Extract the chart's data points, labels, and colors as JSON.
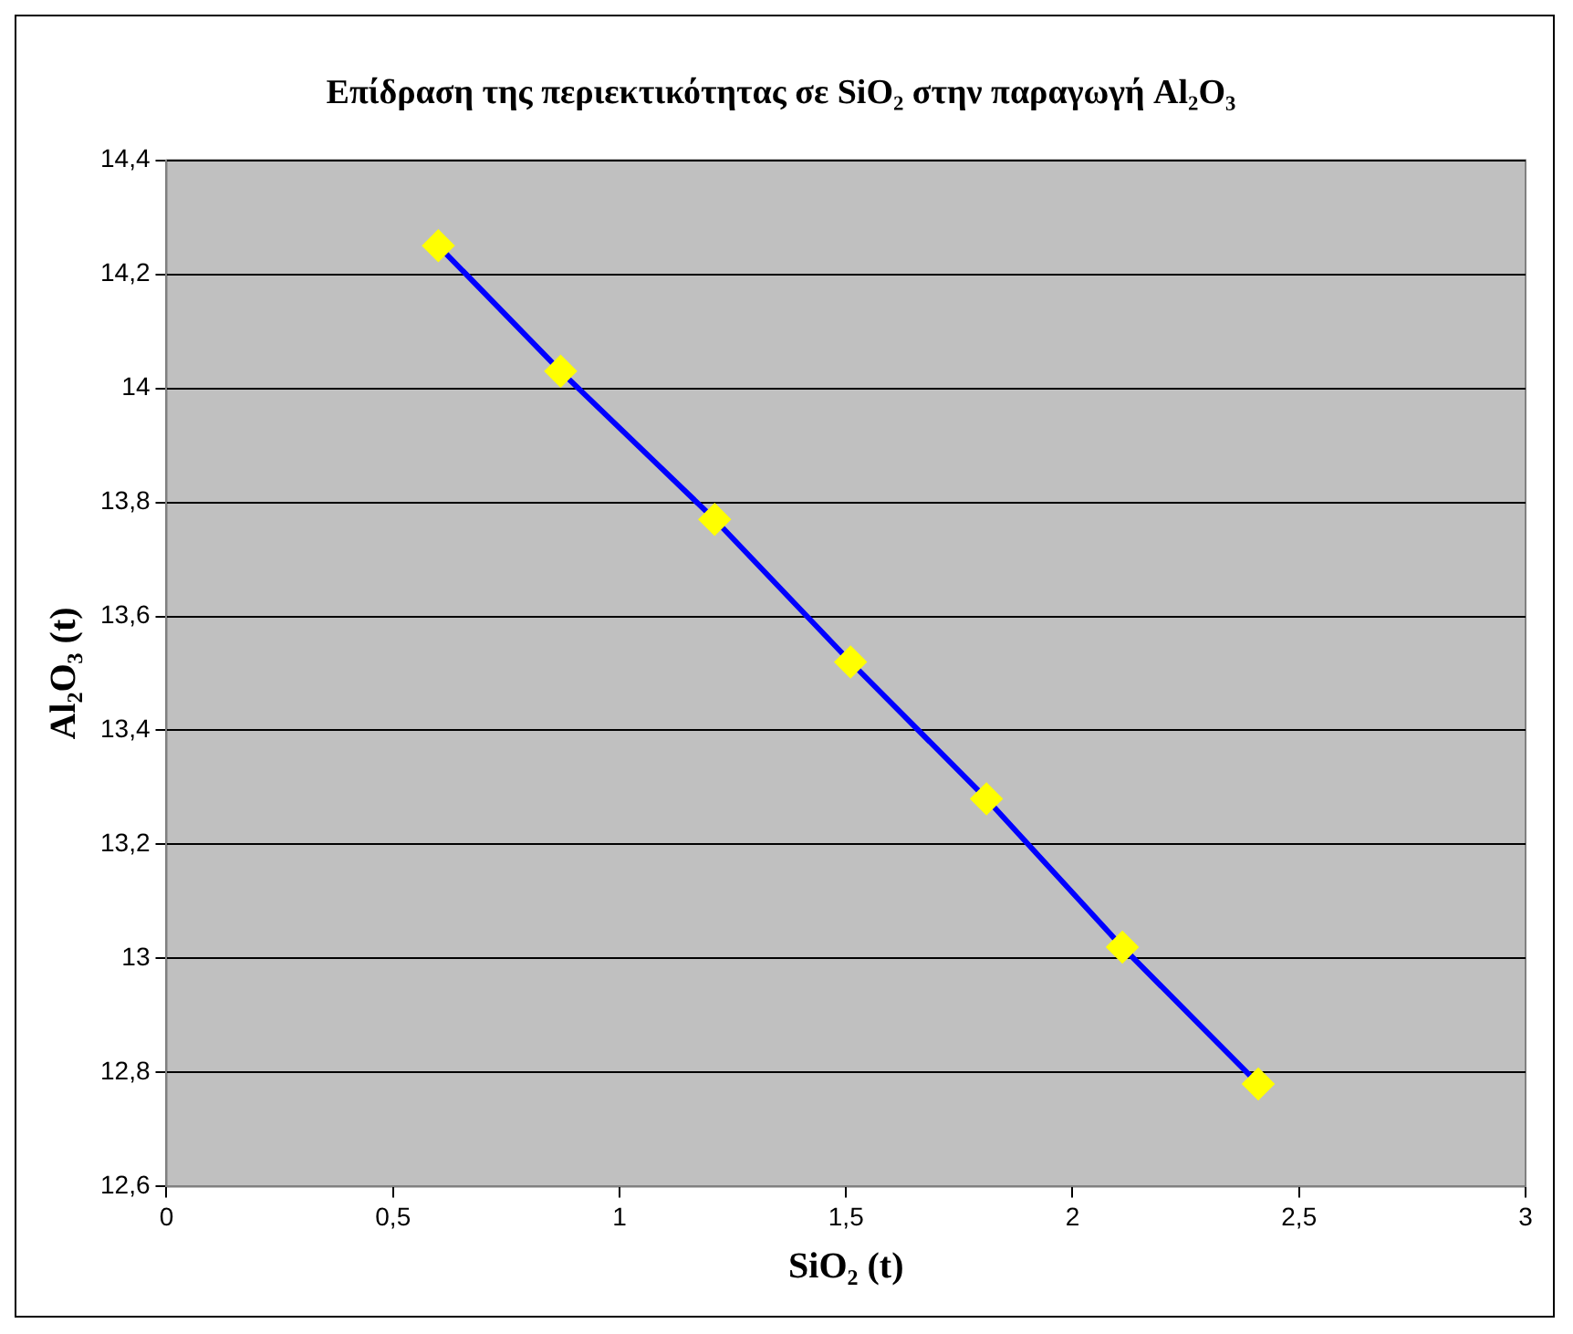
{
  "chart_data": {
    "type": "line",
    "title": "Επίδραση της περιεκτικότητας σε SiO₂ στην παραγωγή Al₂O₃",
    "xlabel": "SiO₂ (t)",
    "ylabel": "Al₂O₃ (t)",
    "x": [
      0.6,
      0.87,
      1.21,
      1.51,
      1.81,
      2.11,
      2.41
    ],
    "series": [
      {
        "color": "#0000ff",
        "values": [
          14.25,
          14.03,
          13.77,
          13.52,
          13.28,
          13.02,
          12.78
        ]
      }
    ],
    "xlim": [
      0,
      3
    ],
    "xticks": [
      0,
      {
        "value": 0.5,
        "label": "0,5"
      },
      1,
      {
        "value": 1.5,
        "label": "1,5"
      },
      2,
      {
        "value": 2.5,
        "label": "2,5"
      },
      3
    ],
    "ylim": [
      12.6,
      14.4
    ],
    "yticks": [
      {
        "value": 12.6,
        "label": "12,6"
      },
      {
        "value": 12.8,
        "label": "12,8"
      },
      13,
      {
        "value": 13.2,
        "label": "13,2"
      },
      {
        "value": 13.4,
        "label": "13,4"
      },
      {
        "value": 13.6,
        "label": "13,6"
      },
      {
        "value": 13.8,
        "label": "13,8"
      },
      14,
      {
        "value": 14.2,
        "label": "14,2"
      },
      {
        "value": 14.4,
        "label": "14,4"
      }
    ],
    "grid": "y",
    "legend": false,
    "marker": "diamond",
    "line_style": "solid"
  }
}
